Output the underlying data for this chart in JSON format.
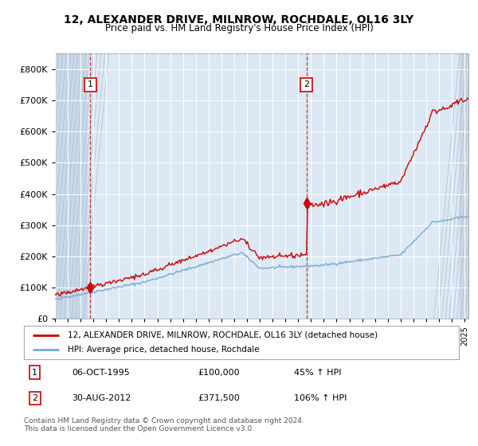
{
  "title": "12, ALEXANDER DRIVE, MILNROW, ROCHDALE, OL16 3LY",
  "subtitle": "Price paid vs. HM Land Registry's House Price Index (HPI)",
  "legend_line1": "12, ALEXANDER DRIVE, MILNROW, ROCHDALE, OL16 3LY (detached house)",
  "legend_line2": "HPI: Average price, detached house, Rochdale",
  "annotation1_date": "06-OCT-1995",
  "annotation1_price": "£100,000",
  "annotation1_hpi": "45% ↑ HPI",
  "annotation2_date": "30-AUG-2012",
  "annotation2_price": "£371,500",
  "annotation2_hpi": "106% ↑ HPI",
  "footer": "Contains HM Land Registry data © Crown copyright and database right 2024.\nThis data is licensed under the Open Government Licence v3.0.",
  "red_color": "#cc0000",
  "blue_color": "#7aaacf",
  "bg_color": "#dce9f5",
  "hatch_bg_color": "#c8d8e8",
  "grid_color": "#ffffff",
  "ylim": [
    0,
    850000
  ],
  "yticks": [
    0,
    100000,
    200000,
    300000,
    400000,
    500000,
    600000,
    700000,
    800000
  ],
  "sale1_x": 1995.76,
  "sale1_y": 100000,
  "sale2_x": 2012.66,
  "sale2_y": 371500,
  "xmin": 1993.0,
  "xmax": 2025.3
}
